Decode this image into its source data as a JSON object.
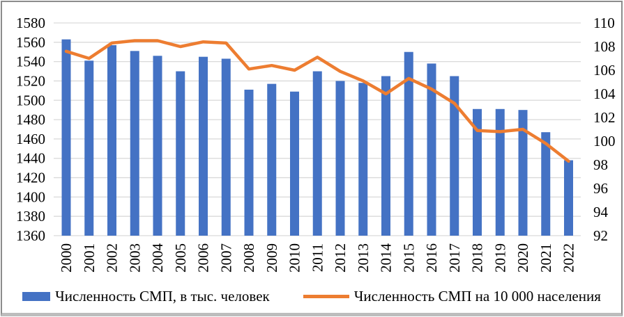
{
  "chart_data": {
    "type": "combo",
    "title": "",
    "categories": [
      "2000",
      "2001",
      "2002",
      "2003",
      "2004",
      "2005",
      "2006",
      "2007",
      "2008",
      "2009",
      "2010",
      "2011",
      "2012",
      "2013",
      "2014",
      "2015",
      "2016",
      "2017",
      "2018",
      "2019",
      "2020",
      "2021",
      "2022"
    ],
    "series": [
      {
        "name": "Численность СМП, в тыс. человек",
        "type": "bar",
        "axis": "left",
        "color": "#4472C4",
        "values": [
          1563,
          1541,
          1557,
          1551,
          1546,
          1530,
          1545,
          1543,
          1511,
          1517,
          1509,
          1530,
          1520,
          1518,
          1525,
          1550,
          1538,
          1525,
          1491,
          1491,
          1490,
          1467,
          1438
        ]
      },
      {
        "name": "Численность СМП на 10 000 населения",
        "type": "line",
        "axis": "right",
        "color": "#ED7D31",
        "values": [
          107.6,
          107.0,
          108.3,
          108.5,
          108.5,
          108.0,
          108.4,
          108.3,
          106.1,
          106.4,
          106.0,
          107.1,
          105.9,
          105.1,
          104.0,
          105.3,
          104.4,
          103.2,
          100.9,
          100.8,
          101.0,
          99.8,
          98.3
        ]
      }
    ],
    "left_axis": {
      "min": 1360,
      "max": 1580,
      "step": 20,
      "ticks": [
        "1580",
        "1560",
        "1540",
        "1520",
        "1500",
        "1480",
        "1460",
        "1440",
        "1420",
        "1400",
        "1380",
        "1360"
      ]
    },
    "right_axis": {
      "min": 92,
      "max": 110,
      "step": 2,
      "ticks": [
        "110",
        "108",
        "106",
        "104",
        "102",
        "100",
        "98",
        "96",
        "94",
        "92"
      ]
    },
    "grid": true,
    "gridline_color": "#d9d9d9",
    "legend_position": "bottom"
  }
}
